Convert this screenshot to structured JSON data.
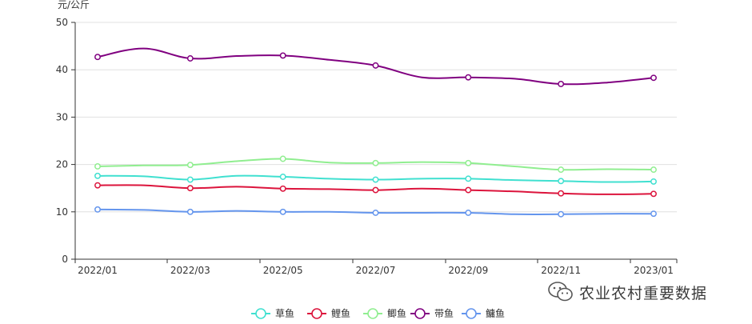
{
  "chart_data": {
    "type": "line",
    "ylabel": "元/公斤",
    "ylim": [
      0,
      50
    ],
    "yticks": [
      0,
      10,
      20,
      30,
      40,
      50
    ],
    "x": [
      "2022/01",
      "2022/02",
      "2022/03",
      "2022/04",
      "2022/05",
      "2022/06",
      "2022/07",
      "2022/08",
      "2022/09",
      "2022/10",
      "2022/11",
      "2022/12",
      "2023/01"
    ],
    "xtick_labels": [
      "2022/01",
      "2022/03",
      "2022/05",
      "2022/07",
      "2022/09",
      "2022/11",
      "2023/01"
    ],
    "grid": true,
    "legend": "bottom-center",
    "series": [
      {
        "name": "草鱼",
        "color": "#40e0d0",
        "values": [
          17.6,
          17.5,
          16.8,
          17.6,
          17.4,
          17.0,
          16.8,
          17.0,
          17.0,
          16.7,
          16.5,
          16.3,
          16.4
        ]
      },
      {
        "name": "鲤鱼",
        "color": "#dc143c",
        "values": [
          15.6,
          15.6,
          15.0,
          15.3,
          14.9,
          14.8,
          14.6,
          14.9,
          14.6,
          14.3,
          13.9,
          13.7,
          13.8
        ]
      },
      {
        "name": "鲫鱼",
        "color": "#90ee90",
        "values": [
          19.6,
          19.8,
          19.9,
          20.7,
          21.2,
          20.4,
          20.3,
          20.5,
          20.3,
          19.6,
          18.9,
          19.0,
          18.9
        ]
      },
      {
        "name": "带鱼",
        "color": "#800080",
        "values": [
          42.7,
          44.5,
          42.4,
          42.9,
          43.0,
          42.1,
          40.9,
          38.4,
          38.4,
          38.1,
          37.0,
          37.3,
          38.3
        ]
      },
      {
        "name": "鳙鱼",
        "color": "#6495ed",
        "values": [
          10.5,
          10.4,
          10.0,
          10.2,
          10.0,
          10.0,
          9.8,
          9.8,
          9.8,
          9.5,
          9.5,
          9.6,
          9.6
        ]
      }
    ],
    "marker_indices": [
      0,
      2,
      4,
      6,
      8,
      10,
      12
    ]
  },
  "watermark": {
    "text": "农业农村重要数据",
    "icon": "wechat-icon"
  }
}
